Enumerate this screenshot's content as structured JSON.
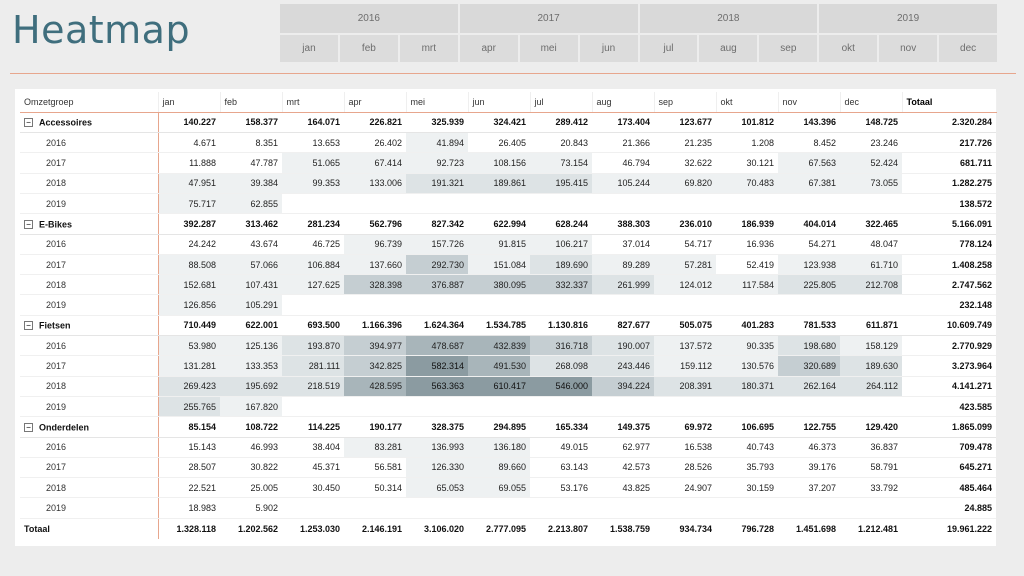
{
  "title": "Heatmap",
  "slicer": {
    "years": [
      "2016",
      "2017",
      "2018",
      "2019"
    ],
    "months": [
      "jan",
      "feb",
      "mrt",
      "apr",
      "mei",
      "jun",
      "jul",
      "aug",
      "sep",
      "okt",
      "nov",
      "dec"
    ]
  },
  "matrix": {
    "row_header": "Omzetgroep",
    "columns": [
      "jan",
      "feb",
      "mrt",
      "apr",
      "mei",
      "jun",
      "jul",
      "aug",
      "sep",
      "okt",
      "nov",
      "dec"
    ],
    "total_label": "Totaal",
    "expander_symbol": "−",
    "heat_colors": [
      "#ffffff",
      "#eef1f2",
      "#dde3e5",
      "#c5ced2",
      "#a8b5ba",
      "#8b9ba1"
    ],
    "groups": [
      {
        "name": "Accessoires",
        "values": [
          "140.227",
          "158.377",
          "164.071",
          "226.821",
          "325.939",
          "324.421",
          "289.412",
          "173.404",
          "123.677",
          "101.812",
          "143.396",
          "148.725"
        ],
        "total": "2.320.284",
        "children": [
          {
            "label": "2016",
            "values": [
              "4.671",
              "8.351",
              "13.653",
              "26.402",
              "41.894",
              "26.405",
              "20.843",
              "21.366",
              "21.235",
              "1.208",
              "8.452",
              "23.246"
            ],
            "heat": [
              0,
              0,
              0,
              0,
              1,
              0,
              0,
              0,
              0,
              0,
              0,
              0
            ],
            "total": "217.726"
          },
          {
            "label": "2017",
            "values": [
              "11.888",
              "47.787",
              "51.065",
              "67.414",
              "92.723",
              "108.156",
              "73.154",
              "46.794",
              "32.622",
              "30.121",
              "67.563",
              "52.424"
            ],
            "heat": [
              0,
              0,
              1,
              1,
              1,
              1,
              1,
              0,
              0,
              0,
              1,
              1
            ],
            "total": "681.711"
          },
          {
            "label": "2018",
            "values": [
              "47.951",
              "39.384",
              "99.353",
              "133.006",
              "191.321",
              "189.861",
              "195.415",
              "105.244",
              "69.820",
              "70.483",
              "67.381",
              "73.055"
            ],
            "heat": [
              1,
              1,
              1,
              1,
              2,
              2,
              2,
              1,
              1,
              1,
              1,
              1
            ],
            "total": "1.282.275"
          },
          {
            "label": "2019",
            "values": [
              "75.717",
              "62.855",
              "",
              "",
              "",
              "",
              "",
              "",
              "",
              "",
              "",
              ""
            ],
            "heat": [
              1,
              1,
              0,
              0,
              0,
              0,
              0,
              0,
              0,
              0,
              0,
              0
            ],
            "total": "138.572"
          }
        ]
      },
      {
        "name": "E-Bikes",
        "values": [
          "392.287",
          "313.462",
          "281.234",
          "562.796",
          "827.342",
          "622.994",
          "628.244",
          "388.303",
          "236.010",
          "186.939",
          "404.014",
          "322.465"
        ],
        "total": "5.166.091",
        "children": [
          {
            "label": "2016",
            "values": [
              "24.242",
              "43.674",
              "46.725",
              "96.739",
              "157.726",
              "91.815",
              "106.217",
              "37.014",
              "54.717",
              "16.936",
              "54.271",
              "48.047"
            ],
            "heat": [
              0,
              0,
              0,
              1,
              1,
              1,
              1,
              0,
              0,
              0,
              0,
              0
            ],
            "total": "778.124"
          },
          {
            "label": "2017",
            "values": [
              "88.508",
              "57.066",
              "106.884",
              "137.660",
              "292.730",
              "151.084",
              "189.690",
              "89.289",
              "57.281",
              "52.419",
              "123.938",
              "61.710"
            ],
            "heat": [
              1,
              1,
              1,
              1,
              3,
              1,
              2,
              1,
              1,
              0,
              1,
              1
            ],
            "total": "1.408.258"
          },
          {
            "label": "2018",
            "values": [
              "152.681",
              "107.431",
              "127.625",
              "328.398",
              "376.887",
              "380.095",
              "332.337",
              "261.999",
              "124.012",
              "117.584",
              "225.805",
              "212.708"
            ],
            "heat": [
              1,
              1,
              1,
              3,
              3,
              3,
              3,
              2,
              1,
              1,
              2,
              2
            ],
            "total": "2.747.562"
          },
          {
            "label": "2019",
            "values": [
              "126.856",
              "105.291",
              "",
              "",
              "",
              "",
              "",
              "",
              "",
              "",
              "",
              ""
            ],
            "heat": [
              1,
              1,
              0,
              0,
              0,
              0,
              0,
              0,
              0,
              0,
              0,
              0
            ],
            "total": "232.148"
          }
        ]
      },
      {
        "name": "Fietsen",
        "values": [
          "710.449",
          "622.001",
          "693.500",
          "1.166.396",
          "1.624.364",
          "1.534.785",
          "1.130.816",
          "827.677",
          "505.075",
          "401.283",
          "781.533",
          "611.871"
        ],
        "total": "10.609.749",
        "children": [
          {
            "label": "2016",
            "values": [
              "53.980",
              "125.136",
              "193.870",
              "394.977",
              "478.687",
              "432.839",
              "316.718",
              "190.007",
              "137.572",
              "90.335",
              "198.680",
              "158.129"
            ],
            "heat": [
              1,
              1,
              2,
              3,
              4,
              4,
              3,
              2,
              1,
              1,
              2,
              1
            ],
            "total": "2.770.929"
          },
          {
            "label": "2017",
            "values": [
              "131.281",
              "133.353",
              "281.111",
              "342.825",
              "582.314",
              "491.530",
              "268.098",
              "243.446",
              "159.112",
              "130.576",
              "320.689",
              "189.630"
            ],
            "heat": [
              1,
              1,
              2,
              3,
              5,
              4,
              2,
              2,
              1,
              1,
              3,
              2
            ],
            "total": "3.273.964"
          },
          {
            "label": "2018",
            "values": [
              "269.423",
              "195.692",
              "218.519",
              "428.595",
              "563.363",
              "610.417",
              "546.000",
              "394.224",
              "208.391",
              "180.371",
              "262.164",
              "264.112"
            ],
            "heat": [
              2,
              2,
              2,
              4,
              5,
              5,
              5,
              3,
              2,
              2,
              2,
              2
            ],
            "total": "4.141.271"
          },
          {
            "label": "2019",
            "values": [
              "255.765",
              "167.820",
              "",
              "",
              "",
              "",
              "",
              "",
              "",
              "",
              "",
              ""
            ],
            "heat": [
              2,
              1,
              0,
              0,
              0,
              0,
              0,
              0,
              0,
              0,
              0,
              0
            ],
            "total": "423.585"
          }
        ]
      },
      {
        "name": "Onderdelen",
        "values": [
          "85.154",
          "108.722",
          "114.225",
          "190.177",
          "328.375",
          "294.895",
          "165.334",
          "149.375",
          "69.972",
          "106.695",
          "122.755",
          "129.420"
        ],
        "total": "1.865.099",
        "children": [
          {
            "label": "2016",
            "values": [
              "15.143",
              "46.993",
              "38.404",
              "83.281",
              "136.993",
              "136.180",
              "49.015",
              "62.977",
              "16.538",
              "40.743",
              "46.373",
              "36.837"
            ],
            "heat": [
              0,
              0,
              0,
              1,
              1,
              1,
              0,
              0,
              0,
              0,
              0,
              0
            ],
            "total": "709.478"
          },
          {
            "label": "2017",
            "values": [
              "28.507",
              "30.822",
              "45.371",
              "56.581",
              "126.330",
              "89.660",
              "63.143",
              "42.573",
              "28.526",
              "35.793",
              "39.176",
              "58.791"
            ],
            "heat": [
              0,
              0,
              0,
              0,
              1,
              1,
              0,
              0,
              0,
              0,
              0,
              0
            ],
            "total": "645.271"
          },
          {
            "label": "2018",
            "values": [
              "22.521",
              "25.005",
              "30.450",
              "50.314",
              "65.053",
              "69.055",
              "53.176",
              "43.825",
              "24.907",
              "30.159",
              "37.207",
              "33.792"
            ],
            "heat": [
              0,
              0,
              0,
              0,
              1,
              1,
              0,
              0,
              0,
              0,
              0,
              0
            ],
            "total": "485.464"
          },
          {
            "label": "2019",
            "values": [
              "18.983",
              "5.902",
              "",
              "",
              "",
              "",
              "",
              "",
              "",
              "",
              "",
              ""
            ],
            "heat": [
              0,
              0,
              0,
              0,
              0,
              0,
              0,
              0,
              0,
              0,
              0,
              0
            ],
            "total": "24.885"
          }
        ]
      }
    ],
    "grand_total": {
      "label": "Totaal",
      "values": [
        "1.328.118",
        "1.202.562",
        "1.253.030",
        "2.146.191",
        "3.106.020",
        "2.777.095",
        "2.213.807",
        "1.538.759",
        "934.734",
        "796.728",
        "1.451.698",
        "1.212.481"
      ],
      "total": "19.961.222"
    }
  }
}
